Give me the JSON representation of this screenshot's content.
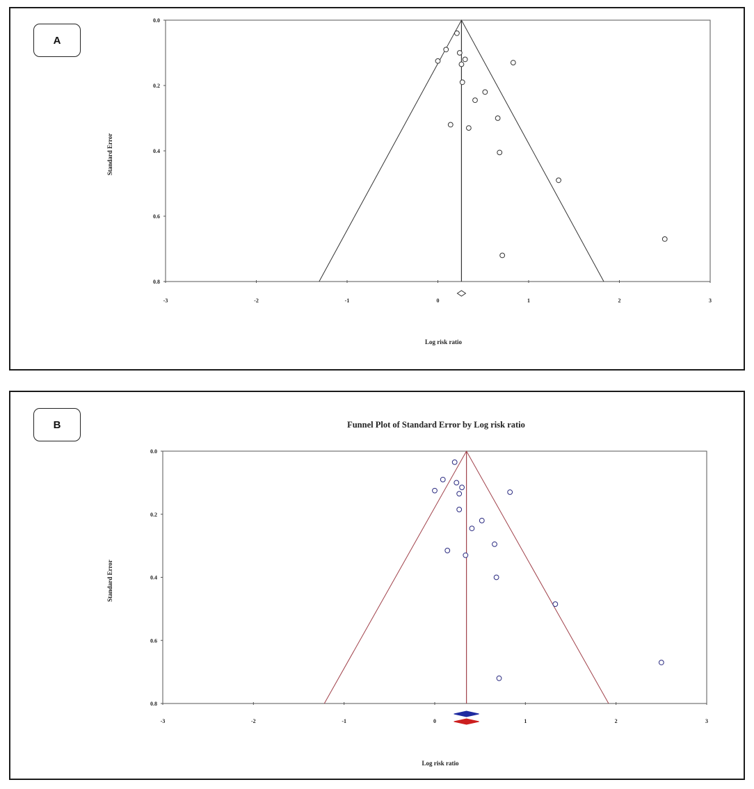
{
  "panels": [
    {
      "label": "A"
    },
    {
      "label": "B"
    }
  ],
  "chart_data": [
    {
      "type": "scatter",
      "title": "",
      "xlabel": "Log risk ratio",
      "ylabel": "Standard Error",
      "xlim": [
        -3,
        3
      ],
      "ylim": [
        0.0,
        0.8
      ],
      "y_inverted": true,
      "x_ticks": [
        "-3",
        "-2",
        "-1",
        "0",
        "1",
        "2",
        "3"
      ],
      "y_ticks": [
        "0.0",
        "0.2",
        "0.4",
        "0.6",
        "0.8"
      ],
      "pooled_estimate": 0.26,
      "funnel_color": "#333333",
      "point_color": "#333333",
      "points": [
        {
          "x": 0.0,
          "y": 0.125
        },
        {
          "x": 0.09,
          "y": 0.09
        },
        {
          "x": 0.21,
          "y": 0.04
        },
        {
          "x": 0.24,
          "y": 0.1
        },
        {
          "x": 0.3,
          "y": 0.12
        },
        {
          "x": 0.26,
          "y": 0.135
        },
        {
          "x": 0.27,
          "y": 0.19
        },
        {
          "x": 0.83,
          "y": 0.13
        },
        {
          "x": 0.52,
          "y": 0.22
        },
        {
          "x": 0.41,
          "y": 0.245
        },
        {
          "x": 0.66,
          "y": 0.3
        },
        {
          "x": 0.14,
          "y": 0.32
        },
        {
          "x": 0.34,
          "y": 0.33
        },
        {
          "x": 0.68,
          "y": 0.405
        },
        {
          "x": 1.33,
          "y": 0.49
        },
        {
          "x": 2.5,
          "y": 0.67
        },
        {
          "x": 0.71,
          "y": 0.72
        }
      ],
      "diamonds": [
        {
          "x": 0.26,
          "color": "#ffffff",
          "stroke": "#333333"
        }
      ]
    },
    {
      "type": "scatter",
      "title": "Funnel Plot of Standard Error by Log risk ratio",
      "xlabel": "Log risk ratio",
      "ylabel": "Standard Error",
      "xlim": [
        -3,
        3
      ],
      "ylim": [
        0.0,
        0.8
      ],
      "y_inverted": true,
      "x_ticks": [
        "-3",
        "-2",
        "-1",
        "0",
        "1",
        "2",
        "3"
      ],
      "y_ticks": [
        "0.0",
        "0.2",
        "0.4",
        "0.6",
        "0.8"
      ],
      "pooled_estimate": 0.35,
      "funnel_color": "#a0414a",
      "point_color": "#2a2a80",
      "points": [
        {
          "x": 0.0,
          "y": 0.125
        },
        {
          "x": 0.09,
          "y": 0.09
        },
        {
          "x": 0.22,
          "y": 0.035
        },
        {
          "x": 0.24,
          "y": 0.1
        },
        {
          "x": 0.3,
          "y": 0.115
        },
        {
          "x": 0.27,
          "y": 0.135
        },
        {
          "x": 0.27,
          "y": 0.185
        },
        {
          "x": 0.83,
          "y": 0.13
        },
        {
          "x": 0.52,
          "y": 0.22
        },
        {
          "x": 0.41,
          "y": 0.245
        },
        {
          "x": 0.66,
          "y": 0.295
        },
        {
          "x": 0.14,
          "y": 0.315
        },
        {
          "x": 0.34,
          "y": 0.33
        },
        {
          "x": 0.68,
          "y": 0.4
        },
        {
          "x": 1.33,
          "y": 0.485
        },
        {
          "x": 2.5,
          "y": 0.67
        },
        {
          "x": 0.71,
          "y": 0.72
        }
      ],
      "diamonds": [
        {
          "x": 0.35,
          "color": "#1e2aa0",
          "stroke": "#1e2aa0"
        },
        {
          "x": 0.35,
          "color": "#cc1f1f",
          "stroke": "#cc1f1f"
        }
      ]
    }
  ]
}
